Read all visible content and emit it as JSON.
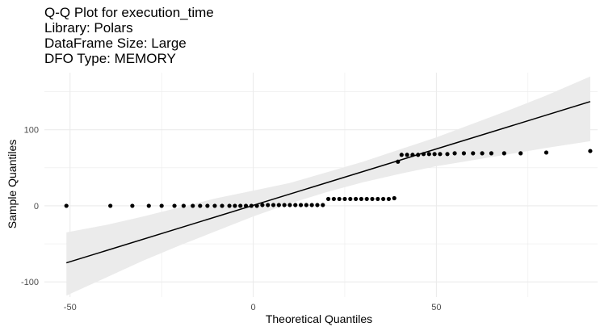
{
  "titles": {
    "line1": "Q-Q Plot for execution_time",
    "line2": "Library: Polars",
    "line3": "DataFrame Size: Large",
    "line4": "DFO Type: MEMORY"
  },
  "chart_data": {
    "type": "scatter",
    "xlabel": "Theoretical Quantiles",
    "ylabel": "Sample Quantiles",
    "xlim": [
      -57,
      94
    ],
    "ylim": [
      -120,
      175
    ],
    "x_ticks": [
      -50,
      0,
      50
    ],
    "y_ticks": [
      -100,
      0,
      100
    ],
    "x_ticks_minor": [
      -25,
      25,
      75
    ],
    "y_ticks_minor": [
      -50,
      50,
      150
    ],
    "grid": true,
    "series": [
      {
        "points": [
          [
            -51,
            0
          ],
          [
            -39,
            0
          ],
          [
            -33,
            0
          ],
          [
            -28.5,
            0
          ],
          [
            -25,
            0
          ],
          [
            -21.5,
            0
          ],
          [
            -19,
            0
          ],
          [
            -16.5,
            0
          ],
          [
            -14.5,
            0
          ],
          [
            -12.5,
            0
          ],
          [
            -10.5,
            0
          ],
          [
            -8.5,
            0
          ],
          [
            -6.5,
            0
          ],
          [
            -5,
            0
          ],
          [
            -3.5,
            0
          ],
          [
            -2,
            0
          ],
          [
            -0.5,
            0
          ],
          [
            1,
            0
          ],
          [
            2.5,
            1
          ],
          [
            4,
            1
          ],
          [
            5.5,
            1
          ],
          [
            7,
            1
          ],
          [
            8.5,
            1
          ],
          [
            10,
            1
          ],
          [
            11.5,
            1
          ],
          [
            13,
            1
          ],
          [
            14.5,
            1
          ],
          [
            16,
            1
          ],
          [
            17.5,
            1
          ],
          [
            19,
            1
          ],
          [
            20.5,
            9
          ],
          [
            22,
            9
          ],
          [
            23.5,
            9
          ],
          [
            25,
            9
          ],
          [
            26.5,
            9
          ],
          [
            28,
            9
          ],
          [
            29.5,
            9
          ],
          [
            31,
            9
          ],
          [
            32.5,
            9
          ],
          [
            34,
            9
          ],
          [
            35.5,
            9
          ],
          [
            37,
            9
          ],
          [
            38.5,
            10
          ],
          [
            39.5,
            58
          ],
          [
            40.5,
            67
          ],
          [
            42,
            67
          ],
          [
            43.5,
            67
          ],
          [
            45,
            67
          ],
          [
            46.5,
            68
          ],
          [
            48,
            68
          ],
          [
            49.5,
            68
          ],
          [
            51,
            68
          ],
          [
            53,
            68
          ],
          [
            55,
            69
          ],
          [
            57.5,
            69
          ],
          [
            60,
            69
          ],
          [
            62.5,
            69
          ],
          [
            65,
            69
          ],
          [
            68.5,
            69
          ],
          [
            73,
            69
          ],
          [
            80,
            70
          ],
          [
            92,
            72
          ]
        ]
      }
    ],
    "reference_line": {
      "x": [
        -51,
        92
      ],
      "y": [
        -75,
        137
      ]
    },
    "confidence_band": {
      "x": [
        -51,
        -40,
        -30,
        -20,
        -10,
        0,
        10,
        20,
        30,
        40,
        50,
        60,
        70,
        80,
        92
      ],
      "lower": [
        -118,
        -94,
        -72,
        -52,
        -33,
        -14,
        3,
        18,
        31,
        42,
        52,
        60,
        68,
        76,
        85
      ],
      "upper": [
        -35,
        -25,
        -14,
        -2,
        10,
        20,
        30,
        44,
        58,
        74,
        90,
        108,
        126,
        145,
        170
      ]
    },
    "colors": {
      "points": "#000000",
      "line": "#000000",
      "band": "#ebebeb",
      "grid": "#ebebeb"
    }
  }
}
